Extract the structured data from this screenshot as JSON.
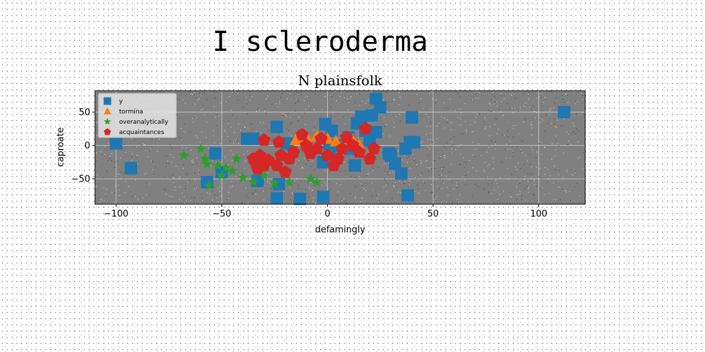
{
  "figure": {
    "title": "I scleroderma"
  },
  "chart_data": {
    "type": "scatter",
    "title": "N plainsfolk",
    "xlabel": "defamingly",
    "ylabel": "caproate",
    "xlim": [
      -110,
      122
    ],
    "ylim": [
      -88,
      82
    ],
    "xticks": [
      -100,
      -50,
      0,
      50,
      100
    ],
    "yticks": [
      -50,
      0,
      50
    ],
    "grid": true,
    "legend_position": "upper-left",
    "background_color": "#808080",
    "series": [
      {
        "name": "y",
        "marker": "square",
        "color": "#1f77b4",
        "x": [
          -100,
          -93,
          -57,
          -53,
          -50,
          -38,
          -35,
          -33,
          -24,
          -24,
          -23,
          -19,
          -13,
          -2,
          -2,
          -1,
          1,
          2,
          5,
          10,
          11,
          13,
          14,
          16,
          18,
          20,
          21,
          23,
          23,
          25,
          29,
          30,
          32,
          35,
          37,
          38,
          39,
          40,
          41,
          112
        ],
        "y": [
          3,
          -34,
          -55,
          -12,
          -40,
          10,
          10,
          -53,
          -79,
          28,
          -58,
          3,
          -80,
          -77,
          -25,
          32,
          -6,
          22,
          0,
          12,
          -5,
          -30,
          33,
          43,
          22,
          8,
          45,
          70,
          20,
          57,
          -12,
          -15,
          -27,
          -42,
          -5,
          -75,
          5,
          42,
          5,
          50
        ]
      },
      {
        "name": "tormina",
        "marker": "triangle",
        "color": "#ff7f0e",
        "x": [
          -15,
          -10,
          -5,
          0,
          4,
          8,
          12,
          15
        ],
        "y": [
          8,
          12,
          14,
          10,
          6,
          4,
          8,
          0
        ]
      },
      {
        "name": "overanalytically",
        "marker": "star",
        "color": "#2ca02c",
        "x": [
          -68,
          -60,
          -58,
          -57,
          -56,
          -52,
          -50,
          -48,
          -45,
          -43,
          -40,
          -35,
          -30,
          -25,
          -22,
          -18,
          -15,
          -10,
          -8,
          -5,
          0
        ],
        "y": [
          -15,
          -5,
          -20,
          -28,
          -60,
          -30,
          -45,
          -33,
          -38,
          -20,
          -48,
          -55,
          -45,
          -57,
          -10,
          -55,
          -12,
          -5,
          -50,
          -55,
          -10
        ]
      },
      {
        "name": "acquaintances",
        "marker": "pentagon",
        "color": "#d62728",
        "x": [
          -35,
          -34,
          -33,
          -32,
          -30,
          -30,
          -28,
          -24,
          -23,
          -22,
          -20,
          -18,
          -16,
          -12,
          -10,
          -8,
          -5,
          -3,
          0,
          3,
          5,
          7,
          9,
          12,
          15,
          18,
          20,
          22
        ],
        "y": [
          -20,
          -25,
          -35,
          -15,
          -30,
          8,
          -22,
          -30,
          5,
          -15,
          -40,
          -20,
          -10,
          16,
          0,
          -12,
          -5,
          10,
          -15,
          -30,
          -20,
          -5,
          12,
          0,
          -10,
          25,
          -20,
          -5
        ]
      }
    ]
  }
}
